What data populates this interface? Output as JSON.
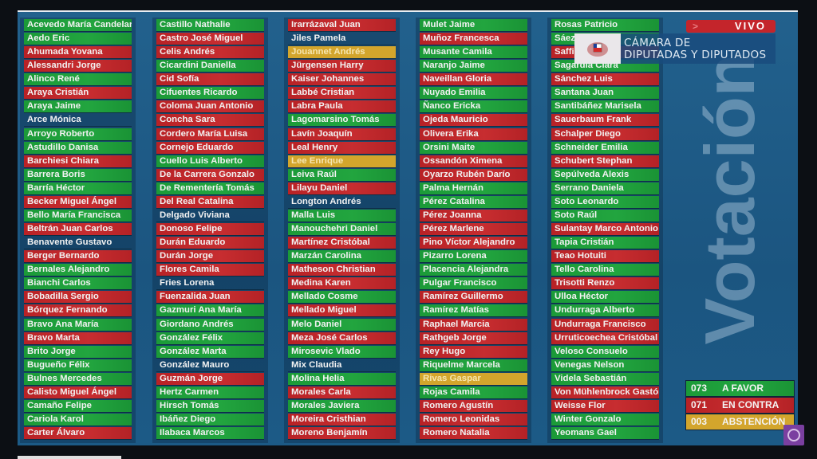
{
  "header": {
    "live_label": "VIVO",
    "institution_line1": "CÁMARA DE",
    "institution_line2": "DIPUTADAS Y DIPUTADOS",
    "watermark": "Votación"
  },
  "colors": {
    "a_favor": "#1f9e3b",
    "en_contra": "#c0282d",
    "abstencion": "#d3a52c",
    "background": "#1d5a86"
  },
  "tally": [
    {
      "count": "073",
      "label": "A FAVOR",
      "vote": "favor"
    },
    {
      "count": "071",
      "label": "EN CONTRA",
      "vote": "contra"
    },
    {
      "count": "003",
      "label": "ABSTENCIÓN",
      "vote": "abst"
    }
  ],
  "columns": [
    [
      [
        "Acevedo María Candelaria",
        "favor"
      ],
      [
        "Aedo Eric",
        "favor"
      ],
      [
        "Ahumada Yovana",
        "contra"
      ],
      [
        "Alessandri Jorge",
        "contra"
      ],
      [
        "Alinco René",
        "favor"
      ],
      [
        "Araya Cristián",
        "contra"
      ],
      [
        "Araya Jaime",
        "favor"
      ],
      [
        "Arce Mónica",
        "none"
      ],
      [
        "Arroyo Roberto",
        "favor"
      ],
      [
        "Astudillo Danisa",
        "favor"
      ],
      [
        "Barchiesi Chiara",
        "contra"
      ],
      [
        "Barrera Boris",
        "favor"
      ],
      [
        "Barría Héctor",
        "favor"
      ],
      [
        "Becker Miguel Ángel",
        "contra"
      ],
      [
        "Bello María Francisca",
        "favor"
      ],
      [
        "Beltrán Juan Carlos",
        "contra"
      ],
      [
        "Benavente Gustavo",
        "none"
      ],
      [
        "Berger Bernardo",
        "contra"
      ],
      [
        "Bernales Alejandro",
        "favor"
      ],
      [
        "Bianchi Carlos",
        "favor"
      ],
      [
        "Bobadilla Sergio",
        "contra"
      ],
      [
        "Bórquez Fernando",
        "contra"
      ],
      [
        "Bravo Ana María",
        "favor"
      ],
      [
        "Bravo Marta",
        "contra"
      ],
      [
        "Brito Jorge",
        "favor"
      ],
      [
        "Bugueño Félix",
        "favor"
      ],
      [
        "Bulnes Mercedes",
        "favor"
      ],
      [
        "Calisto Miguel Ángel",
        "contra"
      ],
      [
        "Camaño Felipe",
        "favor"
      ],
      [
        "Cariola Karol",
        "favor"
      ],
      [
        "Carter Álvaro",
        "contra"
      ]
    ],
    [
      [
        "Castillo Nathalie",
        "favor"
      ],
      [
        "Castro José Miguel",
        "contra"
      ],
      [
        "Celis Andrés",
        "contra"
      ],
      [
        "Cicardini Daniella",
        "favor"
      ],
      [
        "Cid Sofía",
        "contra"
      ],
      [
        "Cifuentes Ricardo",
        "favor"
      ],
      [
        "Coloma Juan Antonio",
        "contra"
      ],
      [
        "Concha Sara",
        "contra"
      ],
      [
        "Cordero María Luisa",
        "contra"
      ],
      [
        "Cornejo Eduardo",
        "contra"
      ],
      [
        "Cuello Luis Alberto",
        "favor"
      ],
      [
        "De la Carrera Gonzalo",
        "contra"
      ],
      [
        "De Rementería Tomás",
        "favor"
      ],
      [
        "Del Real Catalina",
        "contra"
      ],
      [
        "Delgado Viviana",
        "none"
      ],
      [
        "Donoso Felipe",
        "contra"
      ],
      [
        "Durán Eduardo",
        "contra"
      ],
      [
        "Durán Jorge",
        "contra"
      ],
      [
        "Flores Camila",
        "contra"
      ],
      [
        "Fries Lorena",
        "none"
      ],
      [
        "Fuenzalida Juan",
        "contra"
      ],
      [
        "Gazmuri Ana María",
        "favor"
      ],
      [
        "Giordano Andrés",
        "favor"
      ],
      [
        "González Félix",
        "favor"
      ],
      [
        "González Marta",
        "favor"
      ],
      [
        "González Mauro",
        "none"
      ],
      [
        "Guzmán Jorge",
        "contra"
      ],
      [
        "Hertz Carmen",
        "favor"
      ],
      [
        "Hirsch Tomás",
        "favor"
      ],
      [
        "Ibáñez Diego",
        "favor"
      ],
      [
        "Ilabaca Marcos",
        "favor"
      ]
    ],
    [
      [
        "Irarrázaval Juan",
        "contra"
      ],
      [
        "Jiles Pamela",
        "none"
      ],
      [
        "Jouannet Andrés",
        "abst"
      ],
      [
        "Jürgensen Harry",
        "contra"
      ],
      [
        "Kaiser Johannes",
        "contra"
      ],
      [
        "Labbé Cristian",
        "contra"
      ],
      [
        "Labra Paula",
        "contra"
      ],
      [
        "Lagomarsino Tomás",
        "favor"
      ],
      [
        "Lavín Joaquín",
        "contra"
      ],
      [
        "Leal Henry",
        "contra"
      ],
      [
        "Lee Enrique",
        "abst"
      ],
      [
        "Leiva Raúl",
        "favor"
      ],
      [
        "Lilayu Daniel",
        "contra"
      ],
      [
        "Longton Andrés",
        "none"
      ],
      [
        "Malla Luis",
        "favor"
      ],
      [
        "Manouchehri Daniel",
        "favor"
      ],
      [
        "Martínez Cristóbal",
        "contra"
      ],
      [
        "Marzán Carolina",
        "favor"
      ],
      [
        "Matheson Christian",
        "contra"
      ],
      [
        "Medina Karen",
        "contra"
      ],
      [
        "Mellado Cosme",
        "favor"
      ],
      [
        "Mellado Miguel",
        "contra"
      ],
      [
        "Melo Daniel",
        "favor"
      ],
      [
        "Meza José Carlos",
        "contra"
      ],
      [
        "Mirosevic Vlado",
        "favor"
      ],
      [
        "Mix Claudia",
        "none"
      ],
      [
        "Molina Helia",
        "favor"
      ],
      [
        "Morales Carla",
        "contra"
      ],
      [
        "Morales Javiera",
        "favor"
      ],
      [
        "Moreira Cristhian",
        "contra"
      ],
      [
        "Moreno Benjamín",
        "contra"
      ]
    ],
    [
      [
        "Mulet Jaime",
        "favor"
      ],
      [
        "Muñoz Francesca",
        "contra"
      ],
      [
        "Musante Camila",
        "favor"
      ],
      [
        "Naranjo Jaime",
        "favor"
      ],
      [
        "Naveillan Gloria",
        "contra"
      ],
      [
        "Nuyado Emilia",
        "favor"
      ],
      [
        "Ñanco Ericka",
        "favor"
      ],
      [
        "Ojeda Mauricio",
        "contra"
      ],
      [
        "Olivera Erika",
        "contra"
      ],
      [
        "Orsini Maite",
        "favor"
      ],
      [
        "Ossandón Ximena",
        "contra"
      ],
      [
        "Oyarzo Rubén Darío",
        "contra"
      ],
      [
        "Palma Hernán",
        "favor"
      ],
      [
        "Pérez Catalina",
        "favor"
      ],
      [
        "Pérez Joanna",
        "contra"
      ],
      [
        "Pérez Marlene",
        "contra"
      ],
      [
        "Pino Víctor Alejandro",
        "contra"
      ],
      [
        "Pizarro Lorena",
        "favor"
      ],
      [
        "Placencia Alejandra",
        "favor"
      ],
      [
        "Pulgar Francisco",
        "favor"
      ],
      [
        "Ramírez Guillermo",
        "contra"
      ],
      [
        "Ramírez Matías",
        "favor"
      ],
      [
        "Raphael Marcia",
        "contra"
      ],
      [
        "Rathgeb Jorge",
        "contra"
      ],
      [
        "Rey Hugo",
        "contra"
      ],
      [
        "Riquelme Marcela",
        "favor"
      ],
      [
        "Rivas Gaspar",
        "abst"
      ],
      [
        "Rojas Camila",
        "favor"
      ],
      [
        "Romero Agustín",
        "contra"
      ],
      [
        "Romero Leonidas",
        "contra"
      ],
      [
        "Romero Natalia",
        "contra"
      ]
    ],
    [
      [
        "Rosas Patricio",
        "favor"
      ],
      [
        "Sáez Jaime",
        "favor"
      ],
      [
        "Saffirio Jorge",
        "contra"
      ],
      [
        "Sagardía Clara",
        "favor"
      ],
      [
        "Sánchez Luis",
        "contra"
      ],
      [
        "Santana Juan",
        "favor"
      ],
      [
        "Santibáñez Marisela",
        "favor"
      ],
      [
        "Sauerbaum Frank",
        "contra"
      ],
      [
        "Schalper Diego",
        "contra"
      ],
      [
        "Schneider Emilia",
        "favor"
      ],
      [
        "Schubert Stephan",
        "contra"
      ],
      [
        "Sepúlveda Alexis",
        "favor"
      ],
      [
        "Serrano Daniela",
        "favor"
      ],
      [
        "Soto Leonardo",
        "favor"
      ],
      [
        "Soto Raúl",
        "favor"
      ],
      [
        "Sulantay Marco Antonio",
        "contra"
      ],
      [
        "Tapia Cristián",
        "favor"
      ],
      [
        "Teao Hotuiti",
        "contra"
      ],
      [
        "Tello Carolina",
        "favor"
      ],
      [
        "Trisotti Renzo",
        "contra"
      ],
      [
        "Ulloa Héctor",
        "favor"
      ],
      [
        "Undurraga Alberto",
        "favor"
      ],
      [
        "Undurraga Francisco",
        "contra"
      ],
      [
        "Urruticoechea Cristóbal",
        "contra"
      ],
      [
        "Veloso Consuelo",
        "favor"
      ],
      [
        "Venegas Nelson",
        "favor"
      ],
      [
        "Videla Sebastián",
        "favor"
      ],
      [
        "Von Mühlenbrock Gastón",
        "contra"
      ],
      [
        "Weisse Flor",
        "contra"
      ],
      [
        "Winter Gonzalo",
        "favor"
      ],
      [
        "Yeomans Gael",
        "favor"
      ]
    ]
  ]
}
